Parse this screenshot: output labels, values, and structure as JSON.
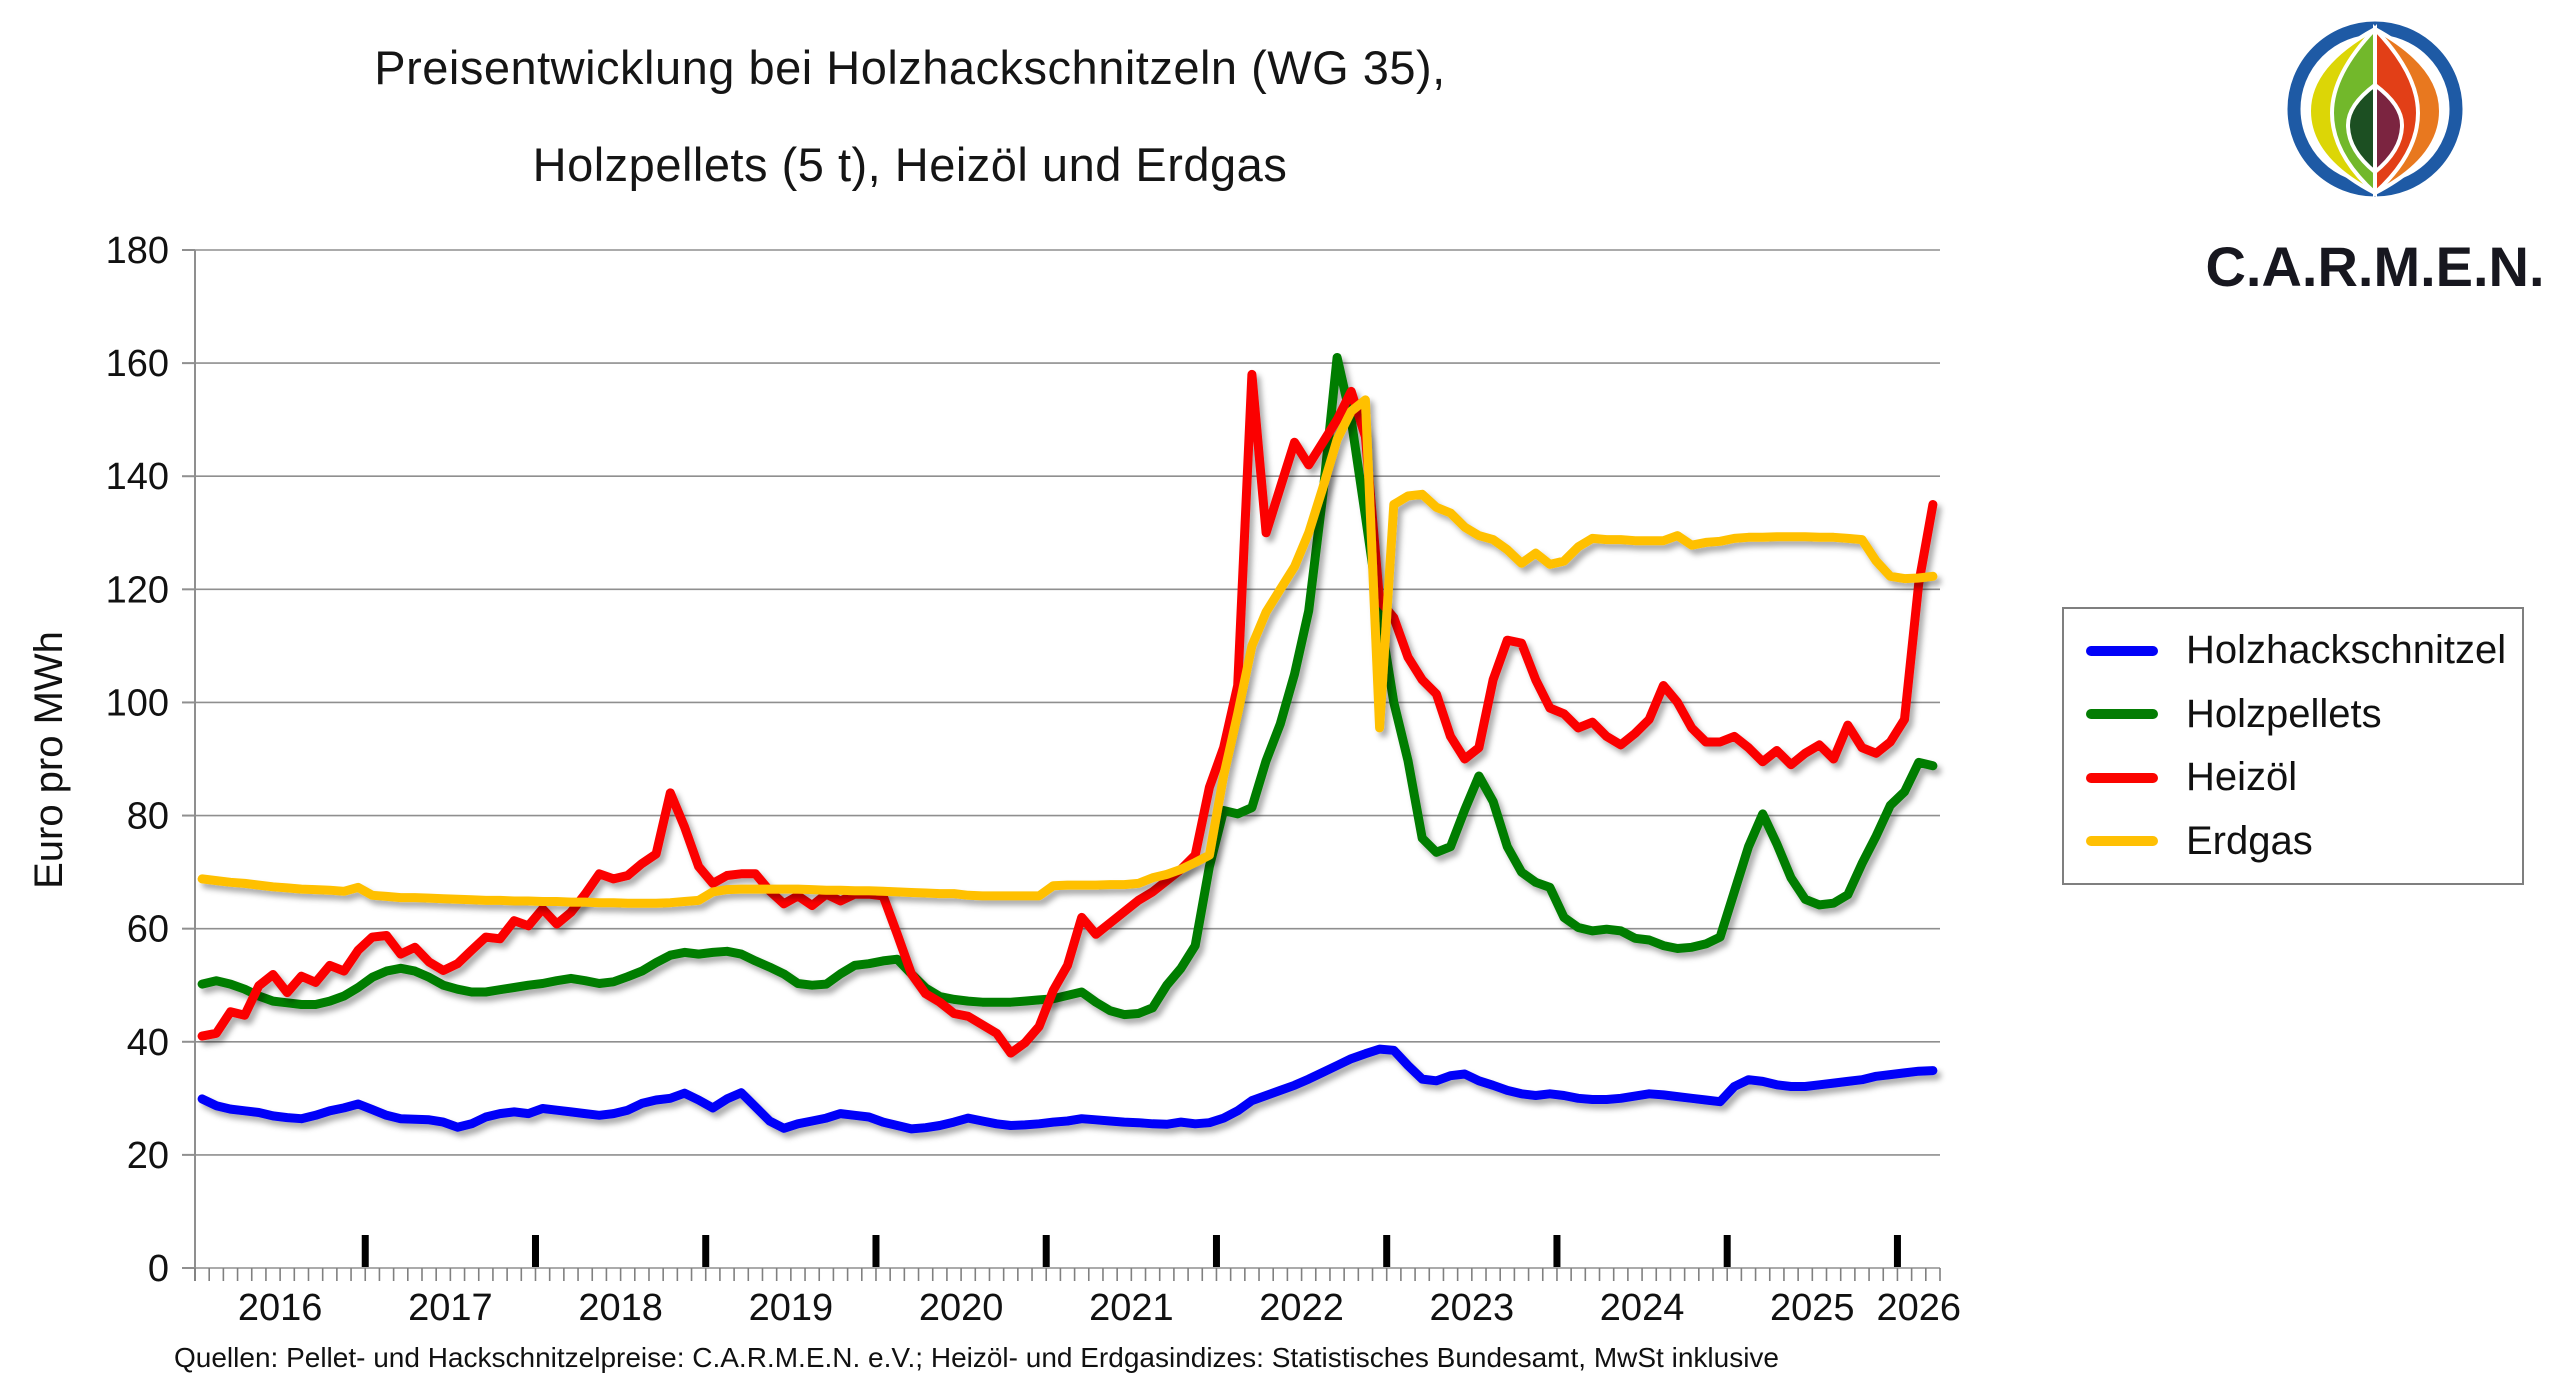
{
  "title": {
    "line1": "Preisentwicklung bei Holzhackschnitzeln (WG 35),",
    "line2": "Holzpellets (5 t), Heizöl und Erdgas"
  },
  "logo": {
    "text": "C.A.R.M.E.N.",
    "icon": "carmen-leaf-flame-logo"
  },
  "source_note": "Quellen: Pellet- und Hackschnitzelpreise: C.A.R.M.E.N. e.V.; Heizöl- und Erdgasindizes: Statistisches Bundesamt, MwSt inklusive",
  "legend": {
    "position": "right",
    "items": [
      {
        "label": "Holzhackschnitzel",
        "color": "#0202f8"
      },
      {
        "label": "Holzpellets",
        "color": "#047d04"
      },
      {
        "label": "Heizöl",
        "color": "#fb0400"
      },
      {
        "label": "Erdgas",
        "color": "#ffc003"
      }
    ]
  },
  "chart_data": {
    "type": "line",
    "title": "Preisentwicklung bei Holzhackschnitzeln (WG 35), Holzpellets (5 t), Heizöl und Erdgas",
    "ylabel": "Euro pro MWh",
    "xlabel": "",
    "ylim": [
      0,
      180
    ],
    "ytick_step": 20,
    "grid": true,
    "x_unit": "month",
    "x_start": "2016-01",
    "x_end": "2026-03",
    "year_labels": [
      "2016",
      "2017",
      "2018",
      "2019",
      "2020",
      "2021",
      "2022",
      "2023",
      "2024",
      "2025",
      "2026"
    ],
    "series": [
      {
        "name": "Holzhackschnitzel",
        "color": "#0202f8",
        "values": [
          29.9,
          28.7,
          28.1,
          27.8,
          27.5,
          26.9,
          26.6,
          26.4,
          27.0,
          27.8,
          28.3,
          29.0,
          28.0,
          27.0,
          26.4,
          26.3,
          26.2,
          25.8,
          24.9,
          25.5,
          26.7,
          27.3,
          27.6,
          27.3,
          28.2,
          27.9,
          27.6,
          27.3,
          27.0,
          27.3,
          27.9,
          29.1,
          29.7,
          30.0,
          30.9,
          29.7,
          28.3,
          29.9,
          31.0,
          28.5,
          26.0,
          24.7,
          25.5,
          26.0,
          26.5,
          27.3,
          27.0,
          26.7,
          25.8,
          25.2,
          24.6,
          24.8,
          25.2,
          25.8,
          26.5,
          26.0,
          25.5,
          25.2,
          25.3,
          25.5,
          25.8,
          26.0,
          26.4,
          26.2,
          26.0,
          25.8,
          25.7,
          25.5,
          25.4,
          25.8,
          25.5,
          25.7,
          26.5,
          27.8,
          29.6,
          30.5,
          31.4,
          32.3,
          33.4,
          34.6,
          35.8,
          37.0,
          37.9,
          38.7,
          38.5,
          35.8,
          33.4,
          33.1,
          34.0,
          34.3,
          33.1,
          32.3,
          31.4,
          30.8,
          30.5,
          30.8,
          30.5,
          30.0,
          29.8,
          29.8,
          30.0,
          30.4,
          30.8,
          30.6,
          30.3,
          30.0,
          29.7,
          29.4,
          32.1,
          33.3,
          33.0,
          32.4,
          32.1,
          32.1,
          32.4,
          32.7,
          33.0,
          33.3,
          33.9,
          34.2,
          34.5,
          34.8,
          34.9
        ]
      },
      {
        "name": "Holzpellets",
        "color": "#047d04",
        "values": [
          50.2,
          50.8,
          50.2,
          49.3,
          48.1,
          47.2,
          46.9,
          46.6,
          46.6,
          47.2,
          48.1,
          49.6,
          51.4,
          52.5,
          53.0,
          52.5,
          51.4,
          50.0,
          49.3,
          48.8,
          48.8,
          49.2,
          49.6,
          50.0,
          50.3,
          50.8,
          51.2,
          50.8,
          50.3,
          50.6,
          51.5,
          52.5,
          54.0,
          55.3,
          55.8,
          55.5,
          55.8,
          56.0,
          55.5,
          54.3,
          53.2,
          52.0,
          50.3,
          50.0,
          50.2,
          52.0,
          53.5,
          53.8,
          54.3,
          54.6,
          52.0,
          49.5,
          48.0,
          47.5,
          47.2,
          47.0,
          47.0,
          47.0,
          47.2,
          47.4,
          47.6,
          48.2,
          48.8,
          47.0,
          45.5,
          44.8,
          45.0,
          46.0,
          50.0,
          53.0,
          57.0,
          71.0,
          80.9,
          80.3,
          81.4,
          89.7,
          96.2,
          105.0,
          116.2,
          136.8,
          161.0,
          150.0,
          133.0,
          115.6,
          100.0,
          89.7,
          76.0,
          73.5,
          74.5,
          81.0,
          87.0,
          82.5,
          74.5,
          70.0,
          68.2,
          67.3,
          62.0,
          60.2,
          59.6,
          59.9,
          59.6,
          58.3,
          58.0,
          57.0,
          56.5,
          56.7,
          57.3,
          58.5,
          66.5,
          74.5,
          80.3,
          75.0,
          69.0,
          65.2,
          64.2,
          64.5,
          66.0,
          71.5,
          76.4,
          81.8,
          84.2,
          89.4,
          88.8
        ]
      },
      {
        "name": "Heizöl",
        "color": "#fb0400",
        "values": [
          41.0,
          41.5,
          45.3,
          44.7,
          49.9,
          51.9,
          48.7,
          51.6,
          50.5,
          53.5,
          52.5,
          56.2,
          58.5,
          58.8,
          55.5,
          56.7,
          54.1,
          52.6,
          53.8,
          56.2,
          58.5,
          58.2,
          61.4,
          60.5,
          63.5,
          60.8,
          62.9,
          66.1,
          69.7,
          68.8,
          69.4,
          71.5,
          73.2,
          84.0,
          78.0,
          71.0,
          68.0,
          69.4,
          69.7,
          69.7,
          66.7,
          64.4,
          65.8,
          64.1,
          66.1,
          64.9,
          66.1,
          66.1,
          65.8,
          59.0,
          52.0,
          48.5,
          47.0,
          45.0,
          44.5,
          43.0,
          41.5,
          38.0,
          39.8,
          42.7,
          49.1,
          53.5,
          62.0,
          59.0,
          61.0,
          63.0,
          65.0,
          66.5,
          68.5,
          70.5,
          73.0,
          85.0,
          92.0,
          103.0,
          158.0,
          130.0,
          138.0,
          146.0,
          142.0,
          146.0,
          150.0,
          155.0,
          147.0,
          118.0,
          115.0,
          108.0,
          104.0,
          101.5,
          94.0,
          90.0,
          92.0,
          104.0,
          111.0,
          110.5,
          104.0,
          99.0,
          98.0,
          95.5,
          96.5,
          94.0,
          92.5,
          94.5,
          97.0,
          103.0,
          100.0,
          95.5,
          93.0,
          93.0,
          94.0,
          92.0,
          89.5,
          91.5,
          89.0,
          91.0,
          92.5,
          90.0,
          96.0,
          92.0,
          91.0,
          93.0,
          97.0,
          121.0,
          135.0
        ]
      },
      {
        "name": "Erdgas",
        "color": "#ffc003",
        "values": [
          68.8,
          68.5,
          68.2,
          68.0,
          67.7,
          67.4,
          67.2,
          67.0,
          66.9,
          66.8,
          66.6,
          67.3,
          65.9,
          65.7,
          65.5,
          65.5,
          65.4,
          65.3,
          65.2,
          65.1,
          65.0,
          65.0,
          64.9,
          64.9,
          64.8,
          64.8,
          64.7,
          64.7,
          64.6,
          64.6,
          64.5,
          64.5,
          64.5,
          64.6,
          64.8,
          65.0,
          66.5,
          66.9,
          67.0,
          67.0,
          67.0,
          67.0,
          67.0,
          66.9,
          66.8,
          66.8,
          66.7,
          66.7,
          66.6,
          66.5,
          66.4,
          66.3,
          66.2,
          66.2,
          65.9,
          65.8,
          65.8,
          65.8,
          65.8,
          65.8,
          67.6,
          67.7,
          67.7,
          67.7,
          67.8,
          67.8,
          68.0,
          69.0,
          69.6,
          70.5,
          71.7,
          73.0,
          87.0,
          98.0,
          110.0,
          116.0,
          120.0,
          124.0,
          130.0,
          138.0,
          146.5,
          151.5,
          153.5,
          95.5,
          135.0,
          136.5,
          136.8,
          134.5,
          133.5,
          131.0,
          129.5,
          128.8,
          127.0,
          124.6,
          126.4,
          124.4,
          125.0,
          127.5,
          129.0,
          128.8,
          128.8,
          128.6,
          128.6,
          128.6,
          129.5,
          127.8,
          128.3,
          128.5,
          129.0,
          129.2,
          129.2,
          129.3,
          129.3,
          129.3,
          129.2,
          129.2,
          129.0,
          128.8,
          125.0,
          122.3,
          121.9,
          122.0,
          122.3
        ]
      }
    ]
  }
}
